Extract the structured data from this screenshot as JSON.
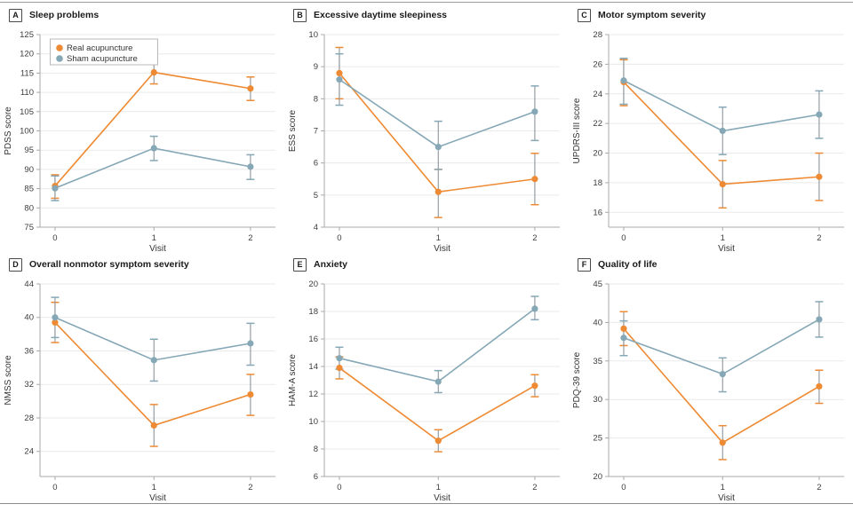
{
  "figure": {
    "kind": "six-panel line chart figure comparing real vs sham acupuncture over visits",
    "background": "#ffffff"
  },
  "colors": {
    "real_acupuncture": "#EE8A33",
    "sham_acupuncture": "#85A7B6",
    "error_bar_stem": "#8B949B",
    "gridline": "#eaeaea",
    "axis": "#a8a8a8",
    "text": "#3d3d3d"
  },
  "legend": {
    "items": [
      "Real acupuncture",
      "Sham acupuncture"
    ],
    "position": "top-left-of-panel-A"
  },
  "chart_data": [
    {
      "type": "line",
      "panel_label": "A",
      "title": "Sleep problems",
      "xlabel": "Visit",
      "ylabel": "PDSS score",
      "x": [
        "0",
        "1",
        "2"
      ],
      "ylim": [
        75,
        125
      ],
      "yticks": [
        75,
        80,
        85,
        90,
        95,
        100,
        105,
        110,
        115,
        120,
        125
      ],
      "grid": true,
      "legend": true,
      "series": [
        {
          "name": "Real acupuncture",
          "color": "#EE8A33",
          "values": [
            85.7,
            115.2,
            111.0
          ],
          "err_low": [
            82.5,
            112.2,
            107.9
          ],
          "err_high": [
            88.6,
            118.2,
            114.0
          ]
        },
        {
          "name": "Sham acupuncture",
          "color": "#85A7B6",
          "values": [
            85.1,
            95.5,
            90.7
          ],
          "err_low": [
            81.9,
            92.3,
            87.4
          ],
          "err_high": [
            88.3,
            98.6,
            93.8
          ]
        }
      ]
    },
    {
      "type": "line",
      "panel_label": "B",
      "title": "Excessive daytime sleepiness",
      "xlabel": "Visit",
      "ylabel": "ESS score",
      "x": [
        "0",
        "1",
        "2"
      ],
      "ylim": [
        4,
        10
      ],
      "yticks": [
        4,
        5,
        6,
        7,
        8,
        9,
        10
      ],
      "grid": true,
      "legend": false,
      "series": [
        {
          "name": "Real acupuncture",
          "color": "#EE8A33",
          "values": [
            8.8,
            5.1,
            5.5
          ],
          "err_low": [
            8.0,
            4.3,
            4.7
          ],
          "err_high": [
            9.6,
            5.8,
            6.3
          ]
        },
        {
          "name": "Sham acupuncture",
          "color": "#85A7B6",
          "values": [
            8.6,
            6.5,
            7.6
          ],
          "err_low": [
            7.8,
            5.8,
            6.7
          ],
          "err_high": [
            9.4,
            7.3,
            8.4
          ]
        }
      ]
    },
    {
      "type": "line",
      "panel_label": "C",
      "title": "Motor symptom severity",
      "xlabel": "Visit",
      "ylabel": "UPDRS-III score",
      "x": [
        "0",
        "1",
        "2"
      ],
      "ylim": [
        15,
        28
      ],
      "yticks": [
        16,
        18,
        20,
        22,
        24,
        26,
        28
      ],
      "grid": true,
      "legend": false,
      "series": [
        {
          "name": "Real acupuncture",
          "color": "#EE8A33",
          "values": [
            24.8,
            17.9,
            18.4
          ],
          "err_low": [
            23.2,
            16.3,
            16.8
          ],
          "err_high": [
            26.3,
            19.5,
            20.0
          ]
        },
        {
          "name": "Sham acupuncture",
          "color": "#85A7B6",
          "values": [
            24.9,
            21.5,
            22.6
          ],
          "err_low": [
            23.3,
            19.9,
            21.0
          ],
          "err_high": [
            26.4,
            23.1,
            24.2
          ]
        }
      ]
    },
    {
      "type": "line",
      "panel_label": "D",
      "title": "Overall nonmotor symptom severity",
      "xlabel": "Visit",
      "ylabel": "NMSS score",
      "x": [
        "0",
        "1",
        "2"
      ],
      "ylim": [
        21,
        44
      ],
      "yticks": [
        24,
        28,
        32,
        36,
        40,
        44
      ],
      "grid": true,
      "legend": false,
      "series": [
        {
          "name": "Real acupuncture",
          "color": "#EE8A33",
          "values": [
            39.4,
            27.1,
            30.8
          ],
          "err_low": [
            37.0,
            24.6,
            28.3
          ],
          "err_high": [
            41.8,
            29.6,
            33.2
          ]
        },
        {
          "name": "Sham acupuncture",
          "color": "#85A7B6",
          "values": [
            40.0,
            34.9,
            36.9
          ],
          "err_low": [
            37.6,
            32.4,
            34.3
          ],
          "err_high": [
            42.4,
            37.4,
            39.3
          ]
        }
      ]
    },
    {
      "type": "line",
      "panel_label": "E",
      "title": "Anxiety",
      "xlabel": "Visit",
      "ylabel": "HAM-A score",
      "x": [
        "0",
        "1",
        "2"
      ],
      "ylim": [
        6,
        20
      ],
      "yticks": [
        6,
        8,
        10,
        12,
        14,
        16,
        18,
        20
      ],
      "grid": true,
      "legend": false,
      "series": [
        {
          "name": "Real acupuncture",
          "color": "#EE8A33",
          "values": [
            13.9,
            8.6,
            12.6
          ],
          "err_low": [
            13.1,
            7.8,
            11.8
          ],
          "err_high": [
            14.7,
            9.4,
            13.4
          ]
        },
        {
          "name": "Sham acupuncture",
          "color": "#85A7B6",
          "values": [
            14.6,
            12.9,
            18.2
          ],
          "err_low": [
            13.8,
            12.1,
            17.4
          ],
          "err_high": [
            15.4,
            13.7,
            19.1
          ]
        }
      ]
    },
    {
      "type": "line",
      "panel_label": "F",
      "title": "Quality of life",
      "xlabel": "Visit",
      "ylabel": "PDQ-39 score",
      "x": [
        "0",
        "1",
        "2"
      ],
      "ylim": [
        20,
        45
      ],
      "yticks": [
        20,
        25,
        30,
        35,
        40,
        45
      ],
      "grid": true,
      "legend": false,
      "series": [
        {
          "name": "Real acupuncture",
          "color": "#EE8A33",
          "values": [
            39.2,
            24.4,
            31.7
          ],
          "err_low": [
            37.0,
            22.2,
            29.5
          ],
          "err_high": [
            41.4,
            26.6,
            33.8
          ]
        },
        {
          "name": "Sham acupuncture",
          "color": "#85A7B6",
          "values": [
            38.0,
            33.3,
            40.4
          ],
          "err_low": [
            35.7,
            31.0,
            38.1
          ],
          "err_high": [
            40.2,
            35.4,
            42.7
          ]
        }
      ]
    }
  ]
}
